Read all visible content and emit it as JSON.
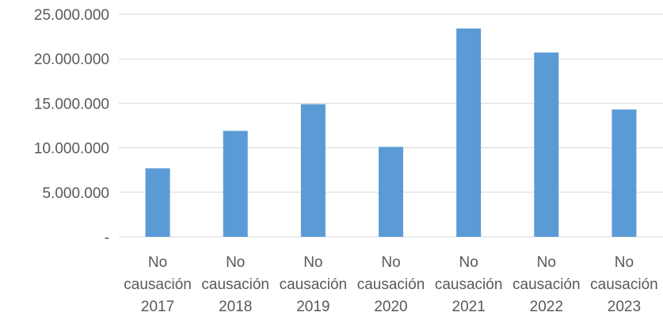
{
  "chart_data": {
    "type": "bar",
    "categories": [
      [
        "No",
        "causación",
        "2017"
      ],
      [
        "No",
        "causación",
        "2018"
      ],
      [
        "No",
        "causación",
        "2019"
      ],
      [
        "No",
        "causación",
        "2020"
      ],
      [
        "No",
        "causación",
        "2021"
      ],
      [
        "No",
        "causación",
        "2022"
      ],
      [
        "No",
        "causación",
        "2023"
      ]
    ],
    "values": [
      7700000,
      11900000,
      14900000,
      10100000,
      23400000,
      20700000,
      14300000
    ],
    "yticks": [
      0,
      5000000,
      10000000,
      15000000,
      20000000,
      25000000
    ],
    "ytick_labels": [
      "-",
      "5.000.000",
      "10.000.000",
      "15.000.000",
      "20.000.000",
      "25.000.000"
    ],
    "ylim": [
      0,
      25000000
    ],
    "grid": true,
    "legend": "none",
    "bar_color": "#5b9bd5",
    "grid_color": "#d9d9d9",
    "text_color": "#595959"
  }
}
